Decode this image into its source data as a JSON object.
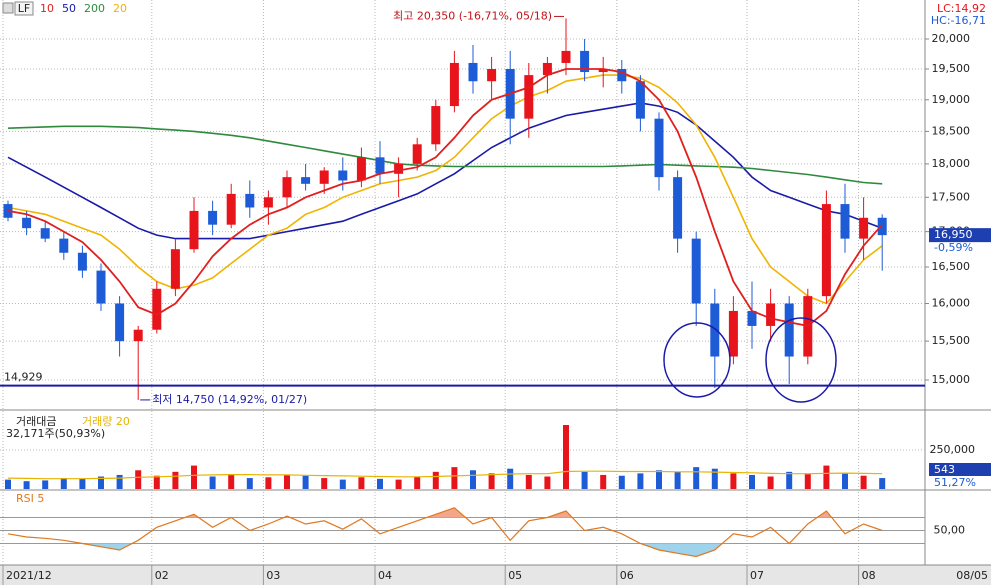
{
  "chart_data": [
    {
      "type": "candlestick",
      "legend_label": "LF",
      "categories": [
        "2021/12",
        null,
        null,
        null,
        null,
        null,
        null,
        null,
        "02",
        null,
        null,
        null,
        null,
        null,
        "03",
        null,
        null,
        null,
        null,
        null,
        "04",
        null,
        null,
        null,
        null,
        null,
        null,
        "05",
        null,
        null,
        null,
        null,
        null,
        "06",
        null,
        null,
        null,
        null,
        null,
        null,
        "07",
        null,
        null,
        null,
        null,
        null,
        "08",
        null
      ],
      "open": [
        17400,
        17200,
        17050,
        16900,
        16700,
        16450,
        16000,
        15500,
        15650,
        16200,
        16750,
        17300,
        17100,
        17550,
        17350,
        17500,
        17800,
        17700,
        17900,
        17750,
        18100,
        17850,
        18000,
        18300,
        18900,
        19600,
        19300,
        19500,
        18700,
        19400,
        19600,
        19800,
        19450,
        19500,
        19300,
        18700,
        17800,
        16900,
        16000,
        15300,
        15900,
        15700,
        16000,
        15300,
        16100,
        17400,
        16900,
        17200
      ],
      "high": [
        17450,
        17300,
        17150,
        17000,
        16800,
        16550,
        16100,
        15700,
        16300,
        16900,
        17500,
        17450,
        17700,
        17750,
        17600,
        17900,
        18000,
        17950,
        18100,
        18250,
        18350,
        18100,
        18400,
        19000,
        19800,
        19900,
        19700,
        19800,
        19600,
        19700,
        20350,
        20000,
        19700,
        19650,
        19400,
        18800,
        17900,
        17000,
        16200,
        16100,
        16300,
        16200,
        16100,
        16200,
        17600,
        17700,
        17500,
        17250
      ],
      "low": [
        17150,
        16950,
        16850,
        16600,
        16350,
        15900,
        15300,
        14750,
        15600,
        16100,
        16700,
        16950,
        17050,
        17200,
        17100,
        17350,
        17600,
        17550,
        17600,
        17650,
        17700,
        17500,
        17900,
        18200,
        18800,
        19100,
        19000,
        18300,
        18400,
        19100,
        19400,
        19300,
        19200,
        19100,
        18500,
        17600,
        16700,
        15700,
        14900,
        15200,
        15400,
        15500,
        14950,
        15200,
        16000,
        16700,
        16600,
        16450
      ],
      "close": [
        17200,
        17050,
        16900,
        16700,
        16450,
        16000,
        15500,
        15650,
        16200,
        16750,
        17300,
        17100,
        17550,
        17350,
        17500,
        17800,
        17700,
        17900,
        17750,
        18100,
        17850,
        18000,
        18300,
        18900,
        19600,
        19300,
        19500,
        18700,
        19400,
        19600,
        19800,
        19450,
        19500,
        19300,
        18700,
        17800,
        16900,
        16000,
        15300,
        15900,
        15700,
        16000,
        15300,
        16100,
        17400,
        16900,
        17200,
        16950
      ],
      "up_color": "#e8141c",
      "down_color": "#1e5bd6",
      "log_scale": true,
      "ylim": [
        14687,
        20669
      ],
      "yticks": [
        {
          "value": 15000,
          "label": "15,000"
        },
        {
          "value": 15500,
          "label": "15,500"
        },
        {
          "value": 16000,
          "label": "16,000"
        },
        {
          "value": 16500,
          "label": "16,500"
        },
        {
          "value": 17000,
          "label": "17,000"
        },
        {
          "value": 17500,
          "label": "17,500"
        },
        {
          "value": 18000,
          "label": "18,000"
        },
        {
          "value": 18500,
          "label": "18,500"
        },
        {
          "value": 19000,
          "label": "19,000"
        },
        {
          "value": 19500,
          "label": "19,500"
        },
        {
          "value": 20000,
          "label": "20,000"
        }
      ],
      "series": [
        {
          "name": "10",
          "color": "#e01f1f",
          "values": [
            17300,
            17250,
            17150,
            17000,
            16850,
            16600,
            16300,
            15950,
            15850,
            16000,
            16300,
            16650,
            16900,
            17100,
            17250,
            17350,
            17500,
            17600,
            17700,
            17750,
            17850,
            17900,
            17950,
            18100,
            18400,
            18750,
            19000,
            19100,
            19200,
            19400,
            19500,
            19500,
            19500,
            19450,
            19300,
            19000,
            18500,
            17800,
            17000,
            16300,
            15900,
            15800,
            15750,
            15700,
            15900,
            16400,
            16800,
            17100
          ]
        },
        {
          "name": "50",
          "color": "#1a1aa8",
          "values": [
            18100,
            17950,
            17800,
            17650,
            17500,
            17350,
            17200,
            17050,
            16950,
            16900,
            16900,
            16900,
            16900,
            16900,
            16950,
            17000,
            17050,
            17100,
            17150,
            17250,
            17350,
            17450,
            17550,
            17700,
            17850,
            18050,
            18250,
            18400,
            18550,
            18650,
            18750,
            18800,
            18850,
            18900,
            18950,
            18900,
            18800,
            18600,
            18350,
            18100,
            17800,
            17600,
            17500,
            17400,
            17300,
            17250,
            17150,
            17050
          ]
        },
        {
          "name": "200",
          "color": "#2e8b3e",
          "values": [
            18550,
            18560,
            18570,
            18580,
            18580,
            18580,
            18570,
            18560,
            18540,
            18520,
            18500,
            18470,
            18440,
            18400,
            18350,
            18300,
            18250,
            18200,
            18150,
            18100,
            18050,
            18000,
            17980,
            17970,
            17960,
            17960,
            17960,
            17960,
            17960,
            17960,
            17960,
            17960,
            17960,
            17970,
            17980,
            17990,
            17980,
            17970,
            17960,
            17950,
            17930,
            17900,
            17870,
            17840,
            17800,
            17760,
            17720,
            17700
          ]
        },
        {
          "name": "20",
          "color": "#f0b400",
          "values": [
            17350,
            17300,
            17250,
            17150,
            17050,
            16950,
            16750,
            16500,
            16300,
            16200,
            16250,
            16350,
            16550,
            16750,
            16950,
            17050,
            17250,
            17350,
            17500,
            17600,
            17700,
            17750,
            17800,
            17900,
            18100,
            18400,
            18700,
            18900,
            19050,
            19150,
            19300,
            19350,
            19400,
            19400,
            19350,
            19200,
            18950,
            18600,
            18100,
            17500,
            16900,
            16500,
            16300,
            16100,
            16000,
            16300,
            16600,
            16800
          ]
        }
      ],
      "annotations": [
        "최고 20,350 (-16,71%, 05/18)",
        "최저 14,750 (14,92%, 01/27)"
      ],
      "reference_line": {
        "value": 14929,
        "label": "14,929"
      },
      "corner_labels": [
        "LC:14,92",
        "HC:-16,71"
      ],
      "last_price": {
        "value": 16950,
        "label": "16,950"
      },
      "change_label": "-0,59%",
      "current_date": "08/05"
    },
    {
      "type": "bar",
      "title": "거래대금",
      "subtitle": "32,171주(50,93%)",
      "values": [
        60000,
        50000,
        55000,
        70000,
        65000,
        80000,
        90000,
        120000,
        85000,
        110000,
        150000,
        80000,
        95000,
        70000,
        75000,
        90000,
        85000,
        70000,
        60000,
        75000,
        65000,
        60000,
        80000,
        110000,
        140000,
        120000,
        100000,
        130000,
        90000,
        80000,
        410000,
        110000,
        90000,
        85000,
        100000,
        120000,
        110000,
        140000,
        130000,
        100000,
        90000,
        80000,
        110000,
        95000,
        150000,
        100000,
        85000,
        70000
      ],
      "up_color": "#e8141c",
      "down_color": "#1e5bd6",
      "series": [
        {
          "name": "거래량 20",
          "color": "#e8b400",
          "values": [
            70000,
            68000,
            66000,
            66000,
            66000,
            68000,
            70000,
            75000,
            78000,
            82000,
            88000,
            90000,
            92000,
            92000,
            90000,
            90000,
            88000,
            86000,
            84000,
            82000,
            80000,
            78000,
            78000,
            80000,
            84000,
            88000,
            92000,
            96000,
            98000,
            98000,
            112000,
            114000,
            114000,
            112000,
            112000,
            112000,
            110000,
            110000,
            108000,
            106000,
            104000,
            100000,
            98000,
            98000,
            100000,
            102000,
            100000,
            98000
          ]
        }
      ],
      "ylim": [
        0,
        474000
      ],
      "yticks": [
        {
          "value": 250000,
          "label": "250,000"
        }
      ],
      "last_value": 543,
      "last_change": "51,27%"
    },
    {
      "type": "line",
      "title": "RSI 5",
      "color": "#e07820",
      "values": [
        45,
        40,
        38,
        35,
        30,
        25,
        20,
        35,
        55,
        65,
        75,
        55,
        70,
        50,
        60,
        72,
        60,
        65,
        52,
        68,
        45,
        55,
        65,
        75,
        85,
        60,
        70,
        35,
        65,
        70,
        80,
        50,
        55,
        45,
        30,
        20,
        15,
        10,
        20,
        45,
        40,
        55,
        30,
        60,
        80,
        45,
        60,
        50
      ],
      "ylim": [
        0,
        100
      ],
      "yticks": [
        {
          "value": 50,
          "label": "50,00"
        }
      ],
      "levels": [
        30,
        70
      ],
      "fill_above": "#f2a78a",
      "fill_below": "#9fd3ec"
    }
  ]
}
